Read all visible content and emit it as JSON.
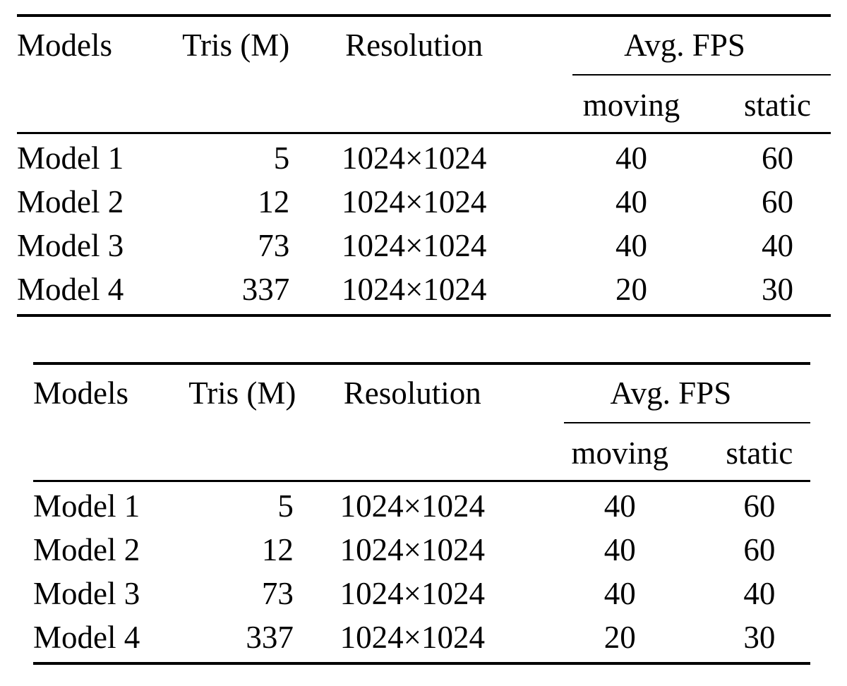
{
  "page": {
    "background_color": "#ffffff",
    "text_color": "#000000",
    "rule_color": "#000000"
  },
  "tables": [
    {
      "title": "fps-benchmark-table-1",
      "columns": {
        "models": "Models",
        "tris": "Tris (M)",
        "resolution": "Resolution",
        "avg_fps": "Avg. FPS",
        "moving": "moving",
        "static": "static"
      },
      "rows": [
        {
          "model": "Model 1",
          "tris": "5",
          "resolution": "1024×1024",
          "moving": "40",
          "static": "60"
        },
        {
          "model": "Model 2",
          "tris": "12",
          "resolution": "1024×1024",
          "moving": "40",
          "static": "60"
        },
        {
          "model": "Model 3",
          "tris": "73",
          "resolution": "1024×1024",
          "moving": "40",
          "static": "40"
        },
        {
          "model": "Model 4",
          "tris": "337",
          "resolution": "1024×1024",
          "moving": "20",
          "static": "30"
        }
      ]
    },
    {
      "title": "fps-benchmark-table-2",
      "columns": {
        "models": "Models",
        "tris": "Tris (M)",
        "resolution": "Resolution",
        "avg_fps": "Avg. FPS",
        "moving": "moving",
        "static": "static"
      },
      "rows": [
        {
          "model": "Model 1",
          "tris": "5",
          "resolution": "1024×1024",
          "moving": "40",
          "static": "60"
        },
        {
          "model": "Model 2",
          "tris": "12",
          "resolution": "1024×1024",
          "moving": "40",
          "static": "60"
        },
        {
          "model": "Model 3",
          "tris": "73",
          "resolution": "1024×1024",
          "moving": "40",
          "static": "40"
        },
        {
          "model": "Model 4",
          "tris": "337",
          "resolution": "1024×1024",
          "moving": "20",
          "static": "30"
        }
      ]
    }
  ]
}
